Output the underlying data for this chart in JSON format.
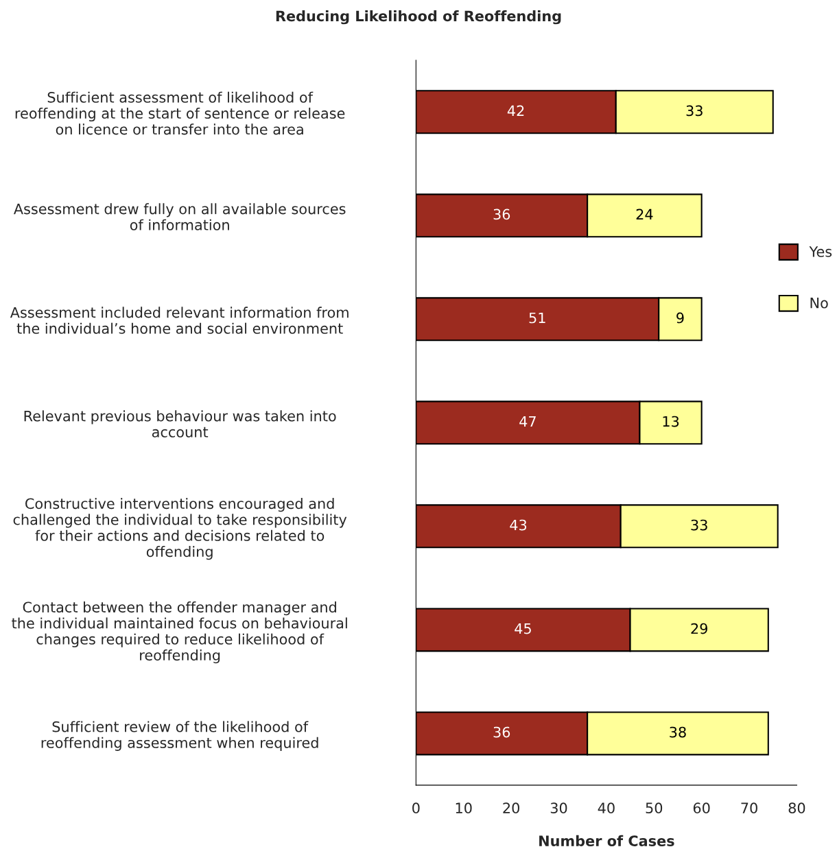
{
  "chart_data": {
    "type": "bar",
    "orientation": "horizontal",
    "stacked": true,
    "title": "Reducing Likelihood of Reoffending",
    "xlabel": "Number of Cases",
    "categories": [
      "Sufficient assessment of likelihood of\nreoffending at the start of sentence or release\non licence or transfer into the area",
      "Assessment drew fully on all available sources\nof information",
      "Assessment included relevant information from\nthe individual’s home and social environment",
      "Relevant previous behaviour was taken into\naccount",
      "Constructive interventions encouraged and\nchallenged the individual to take responsibility\nfor their actions and decisions related to\noffending",
      "Contact between the offender manager and\nthe individual maintained focus on behavioural\nchanges required to reduce likelihood of\nreoffending",
      "Sufficient review of the likelihood of\nreoffending assessment when required"
    ],
    "series": [
      {
        "name": "Yes",
        "color": "#9c2b1f",
        "values": [
          42,
          36,
          51,
          47,
          43,
          45,
          36
        ]
      },
      {
        "name": "No",
        "color": "#ffff99",
        "values": [
          33,
          24,
          9,
          13,
          33,
          29,
          38
        ]
      }
    ],
    "xlim": [
      0,
      80
    ],
    "xticks": [
      0,
      10,
      20,
      30,
      40,
      50,
      60,
      70,
      80
    ],
    "data_labels": true,
    "legend": "right",
    "grid": false
  }
}
